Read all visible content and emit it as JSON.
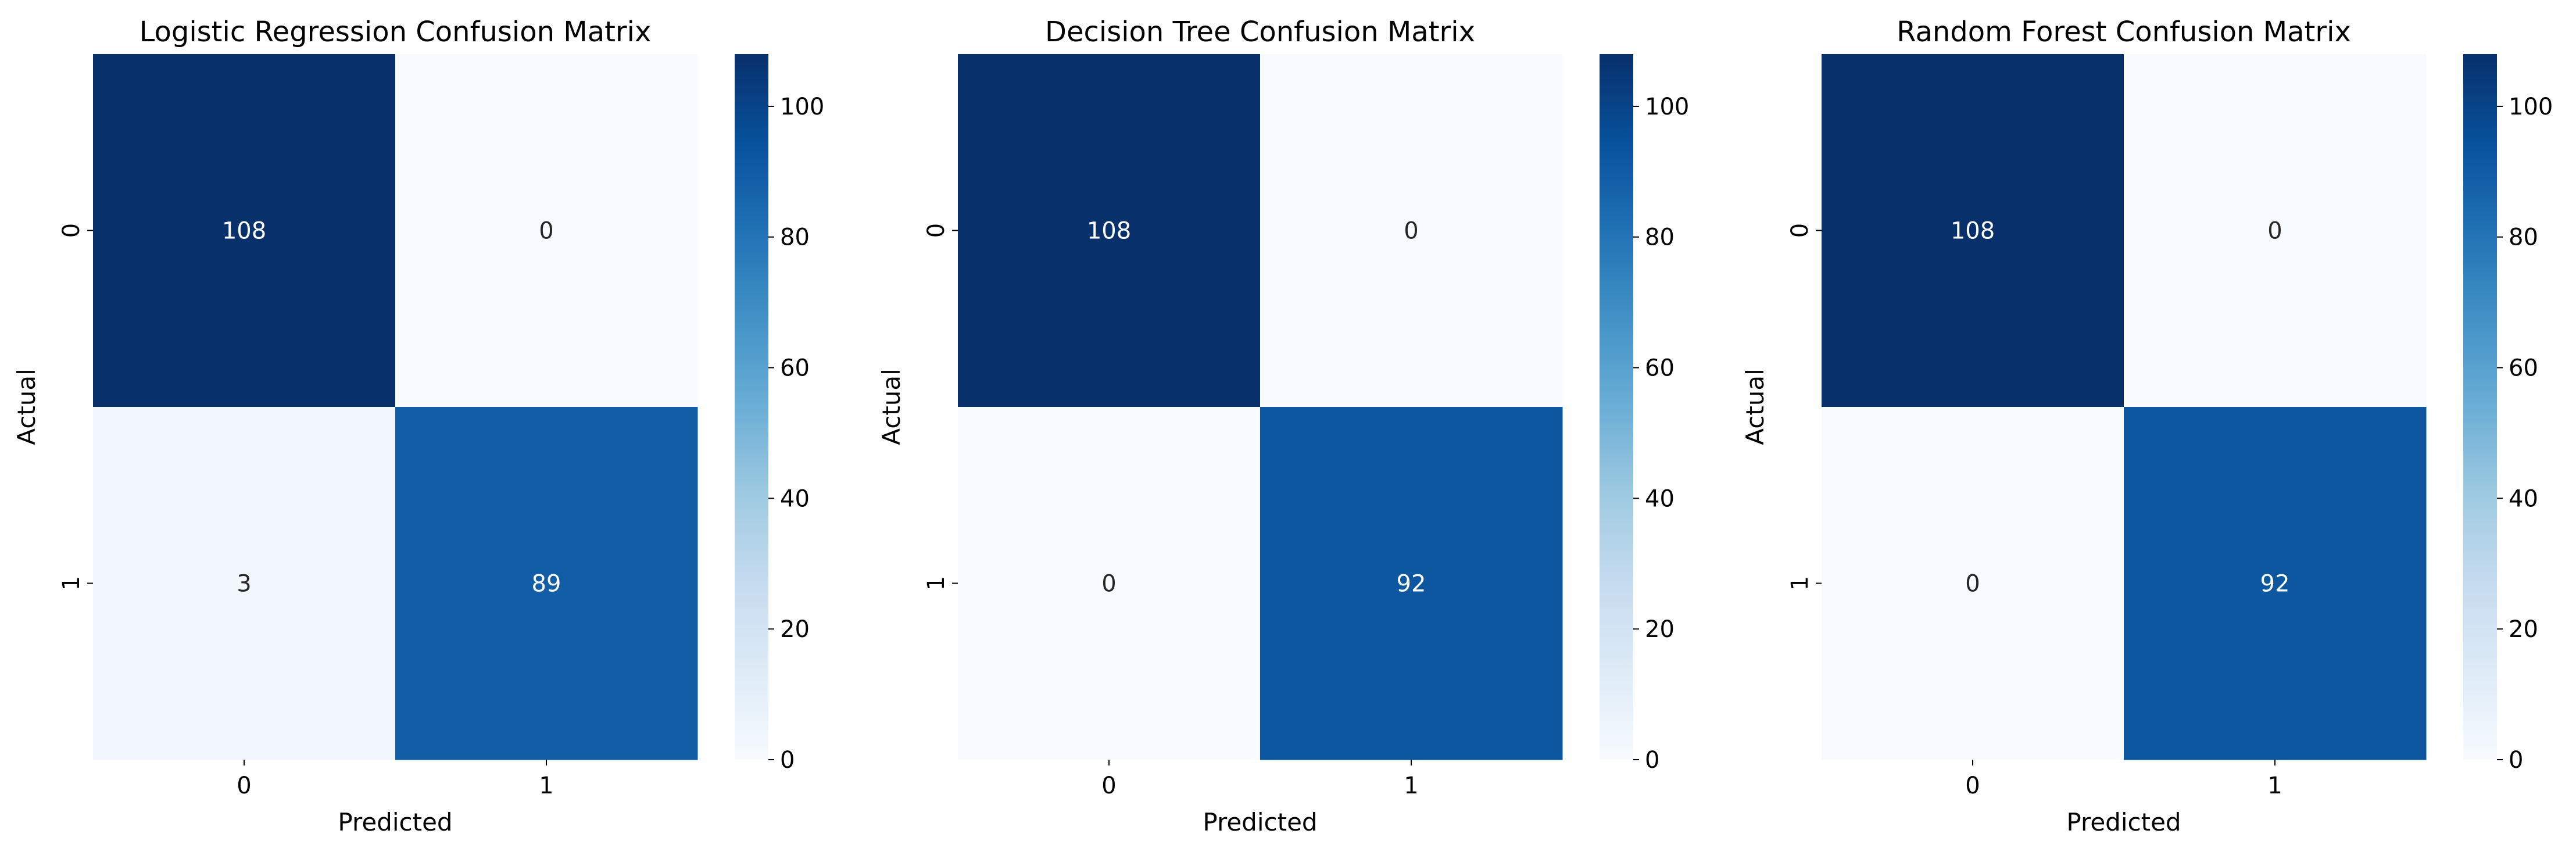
{
  "chart_data": [
    {
      "type": "heatmap",
      "title": "Logistic Regression Confusion Matrix",
      "xlabel": "Predicted",
      "ylabel": "Actual",
      "x_categories": [
        "0",
        "1"
      ],
      "y_categories": [
        "0",
        "1"
      ],
      "values": [
        [
          108,
          0
        ],
        [
          3,
          89
        ]
      ],
      "colorbar": {
        "min": 0,
        "max": 108,
        "ticks": [
          "0",
          "20",
          "40",
          "60",
          "80",
          "100"
        ]
      },
      "colormap": "Blues"
    },
    {
      "type": "heatmap",
      "title": "Decision Tree Confusion Matrix",
      "xlabel": "Predicted",
      "ylabel": "Actual",
      "x_categories": [
        "0",
        "1"
      ],
      "y_categories": [
        "0",
        "1"
      ],
      "values": [
        [
          108,
          0
        ],
        [
          0,
          92
        ]
      ],
      "colorbar": {
        "min": 0,
        "max": 108,
        "ticks": [
          "0",
          "20",
          "40",
          "60",
          "80",
          "100"
        ]
      },
      "colormap": "Blues"
    },
    {
      "type": "heatmap",
      "title": "Random Forest Confusion Matrix",
      "xlabel": "Predicted",
      "ylabel": "Actual",
      "x_categories": [
        "0",
        "1"
      ],
      "y_categories": [
        "0",
        "1"
      ],
      "values": [
        [
          108,
          0
        ],
        [
          0,
          92
        ]
      ],
      "colorbar": {
        "min": 0,
        "max": 108,
        "ticks": [
          "0",
          "20",
          "40",
          "60",
          "80",
          "100"
        ]
      },
      "colormap": "Blues"
    }
  ]
}
